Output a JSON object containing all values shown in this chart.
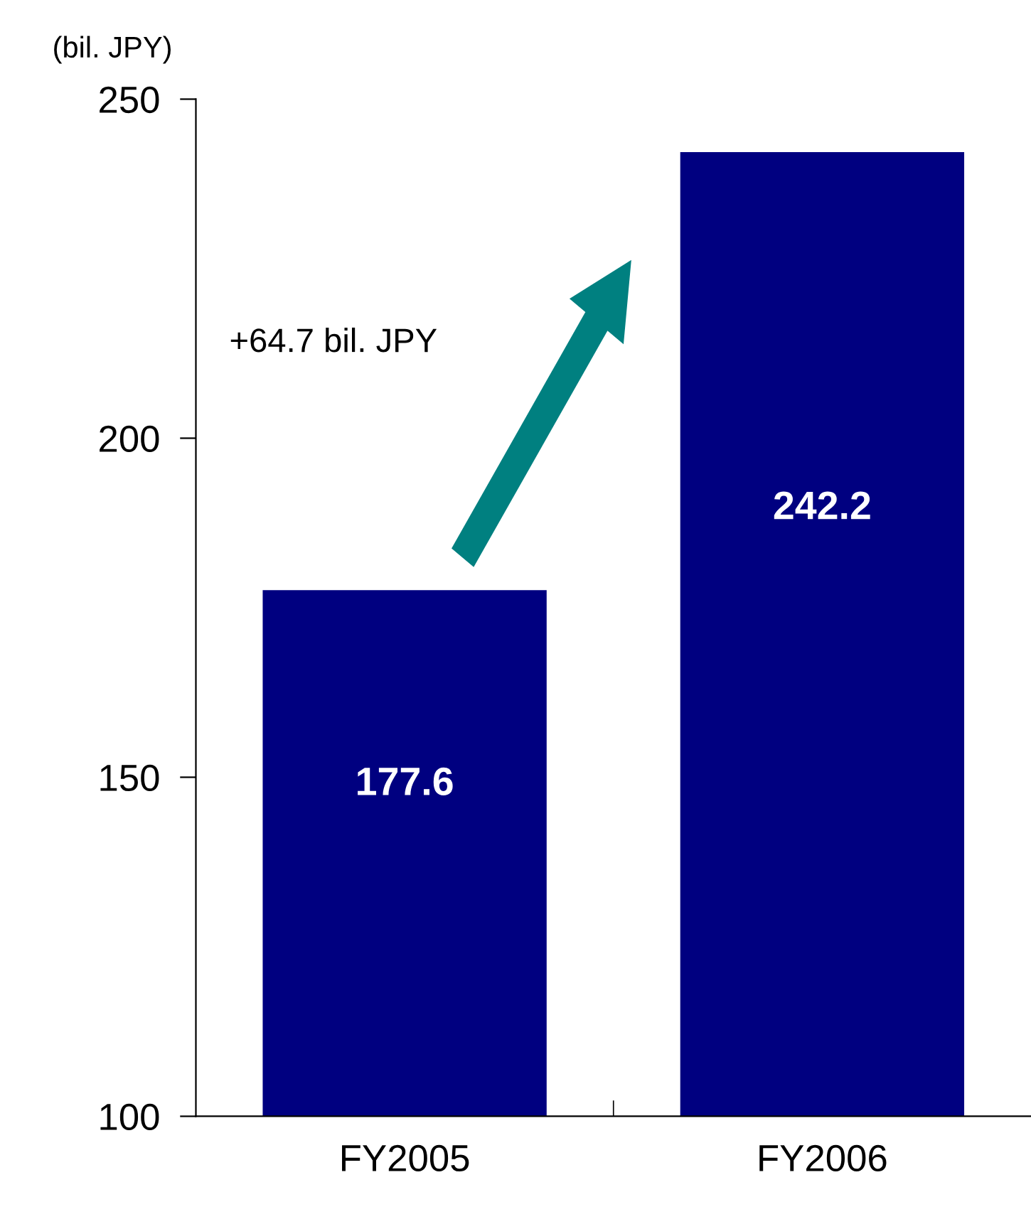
{
  "chart_data": {
    "type": "bar",
    "ylabel": "(bil. JPY)",
    "categories": [
      "FY2005",
      "FY2006"
    ],
    "values": [
      177.6,
      242.2
    ],
    "color": "#000080",
    "ylim": [
      100,
      250
    ],
    "yticks": [
      100,
      150,
      200,
      250
    ],
    "grid": false,
    "data_labels": true,
    "annotations": [
      "+64.7 bil. JPY"
    ]
  }
}
